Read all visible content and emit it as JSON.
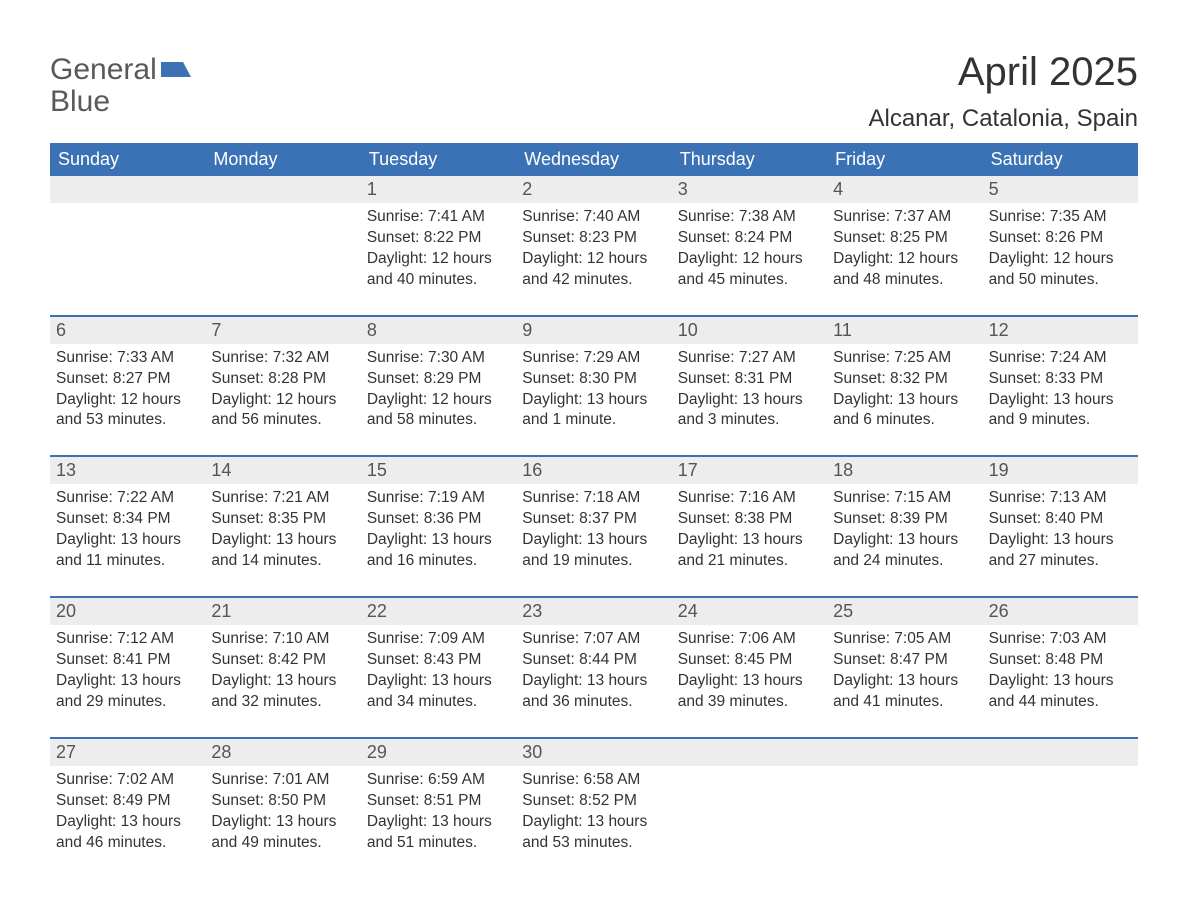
{
  "logo": {
    "line1": "General",
    "line2": "Blue"
  },
  "title": "April 2025",
  "location": "Alcanar, Catalonia, Spain",
  "colors": {
    "header_bg": "#3a72b5",
    "header_fg": "#ffffff",
    "daynum_bg": "#ededed",
    "daynum_fg": "#555555",
    "text": "#333333",
    "accent": "#3a72b5"
  },
  "layout": {
    "type": "calendar",
    "columns": 7,
    "rows": 5
  },
  "days_of_week": [
    "Sunday",
    "Monday",
    "Tuesday",
    "Wednesday",
    "Thursday",
    "Friday",
    "Saturday"
  ],
  "labels": {
    "sunrise": "Sunrise",
    "sunset": "Sunset",
    "daylight": "Daylight"
  },
  "days": [
    {
      "n": 1,
      "sunrise": "7:41 AM",
      "sunset": "8:22 PM",
      "daylight": "12 hours and 40 minutes."
    },
    {
      "n": 2,
      "sunrise": "7:40 AM",
      "sunset": "8:23 PM",
      "daylight": "12 hours and 42 minutes."
    },
    {
      "n": 3,
      "sunrise": "7:38 AM",
      "sunset": "8:24 PM",
      "daylight": "12 hours and 45 minutes."
    },
    {
      "n": 4,
      "sunrise": "7:37 AM",
      "sunset": "8:25 PM",
      "daylight": "12 hours and 48 minutes."
    },
    {
      "n": 5,
      "sunrise": "7:35 AM",
      "sunset": "8:26 PM",
      "daylight": "12 hours and 50 minutes."
    },
    {
      "n": 6,
      "sunrise": "7:33 AM",
      "sunset": "8:27 PM",
      "daylight": "12 hours and 53 minutes."
    },
    {
      "n": 7,
      "sunrise": "7:32 AM",
      "sunset": "8:28 PM",
      "daylight": "12 hours and 56 minutes."
    },
    {
      "n": 8,
      "sunrise": "7:30 AM",
      "sunset": "8:29 PM",
      "daylight": "12 hours and 58 minutes."
    },
    {
      "n": 9,
      "sunrise": "7:29 AM",
      "sunset": "8:30 PM",
      "daylight": "13 hours and 1 minute."
    },
    {
      "n": 10,
      "sunrise": "7:27 AM",
      "sunset": "8:31 PM",
      "daylight": "13 hours and 3 minutes."
    },
    {
      "n": 11,
      "sunrise": "7:25 AM",
      "sunset": "8:32 PM",
      "daylight": "13 hours and 6 minutes."
    },
    {
      "n": 12,
      "sunrise": "7:24 AM",
      "sunset": "8:33 PM",
      "daylight": "13 hours and 9 minutes."
    },
    {
      "n": 13,
      "sunrise": "7:22 AM",
      "sunset": "8:34 PM",
      "daylight": "13 hours and 11 minutes."
    },
    {
      "n": 14,
      "sunrise": "7:21 AM",
      "sunset": "8:35 PM",
      "daylight": "13 hours and 14 minutes."
    },
    {
      "n": 15,
      "sunrise": "7:19 AM",
      "sunset": "8:36 PM",
      "daylight": "13 hours and 16 minutes."
    },
    {
      "n": 16,
      "sunrise": "7:18 AM",
      "sunset": "8:37 PM",
      "daylight": "13 hours and 19 minutes."
    },
    {
      "n": 17,
      "sunrise": "7:16 AM",
      "sunset": "8:38 PM",
      "daylight": "13 hours and 21 minutes."
    },
    {
      "n": 18,
      "sunrise": "7:15 AM",
      "sunset": "8:39 PM",
      "daylight": "13 hours and 24 minutes."
    },
    {
      "n": 19,
      "sunrise": "7:13 AM",
      "sunset": "8:40 PM",
      "daylight": "13 hours and 27 minutes."
    },
    {
      "n": 20,
      "sunrise": "7:12 AM",
      "sunset": "8:41 PM",
      "daylight": "13 hours and 29 minutes."
    },
    {
      "n": 21,
      "sunrise": "7:10 AM",
      "sunset": "8:42 PM",
      "daylight": "13 hours and 32 minutes."
    },
    {
      "n": 22,
      "sunrise": "7:09 AM",
      "sunset": "8:43 PM",
      "daylight": "13 hours and 34 minutes."
    },
    {
      "n": 23,
      "sunrise": "7:07 AM",
      "sunset": "8:44 PM",
      "daylight": "13 hours and 36 minutes."
    },
    {
      "n": 24,
      "sunrise": "7:06 AM",
      "sunset": "8:45 PM",
      "daylight": "13 hours and 39 minutes."
    },
    {
      "n": 25,
      "sunrise": "7:05 AM",
      "sunset": "8:47 PM",
      "daylight": "13 hours and 41 minutes."
    },
    {
      "n": 26,
      "sunrise": "7:03 AM",
      "sunset": "8:48 PM",
      "daylight": "13 hours and 44 minutes."
    },
    {
      "n": 27,
      "sunrise": "7:02 AM",
      "sunset": "8:49 PM",
      "daylight": "13 hours and 46 minutes."
    },
    {
      "n": 28,
      "sunrise": "7:01 AM",
      "sunset": "8:50 PM",
      "daylight": "13 hours and 49 minutes."
    },
    {
      "n": 29,
      "sunrise": "6:59 AM",
      "sunset": "8:51 PM",
      "daylight": "13 hours and 51 minutes."
    },
    {
      "n": 30,
      "sunrise": "6:58 AM",
      "sunset": "8:52 PM",
      "daylight": "13 hours and 53 minutes."
    }
  ],
  "grid": [
    [
      null,
      null,
      1,
      2,
      3,
      4,
      5
    ],
    [
      6,
      7,
      8,
      9,
      10,
      11,
      12
    ],
    [
      13,
      14,
      15,
      16,
      17,
      18,
      19
    ],
    [
      20,
      21,
      22,
      23,
      24,
      25,
      26
    ],
    [
      27,
      28,
      29,
      30,
      null,
      null,
      null
    ]
  ]
}
